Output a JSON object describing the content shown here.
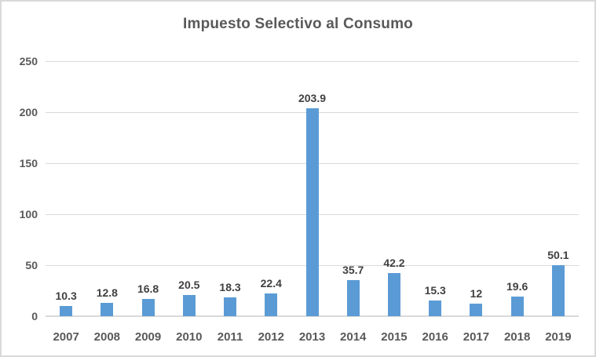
{
  "title": "Impuesto Selectivo al Consumo",
  "colors": {
    "bar": "#5B9BD5",
    "gridline": "#D9D9D9",
    "axis_line": "#D9D9D9",
    "border": "#D9D9D9",
    "title_text": "#595959",
    "axis_text": "#595959",
    "data_label_text": "#404040",
    "background": "#FFFFFF"
  },
  "chart_data": {
    "type": "bar",
    "title": "Impuesto Selectivo al Consumo",
    "categories": [
      "2007",
      "2008",
      "2009",
      "2010",
      "2011",
      "2012",
      "2013",
      "2014",
      "2015",
      "2016",
      "2017",
      "2018",
      "2019"
    ],
    "values": [
      10.3,
      12.8,
      16.8,
      20.5,
      18.3,
      22.4,
      203.9,
      35.7,
      42.2,
      15.3,
      12,
      19.6,
      50.1
    ],
    "data_labels": [
      "10.3",
      "12.8",
      "16.8",
      "20.5",
      "18.3",
      "22.4",
      "203.9",
      "35.7",
      "42.2",
      "15.3",
      "12",
      "19.6",
      "50.1"
    ],
    "xlabel": "",
    "ylabel": "",
    "ylim": [
      0,
      250
    ],
    "yticks": [
      0,
      50,
      100,
      150,
      200,
      250
    ],
    "ytick_labels": [
      "0",
      "50",
      "100",
      "150",
      "200",
      "250"
    ],
    "grid": true,
    "legend": "none",
    "bar_color": "#5B9BD5"
  }
}
